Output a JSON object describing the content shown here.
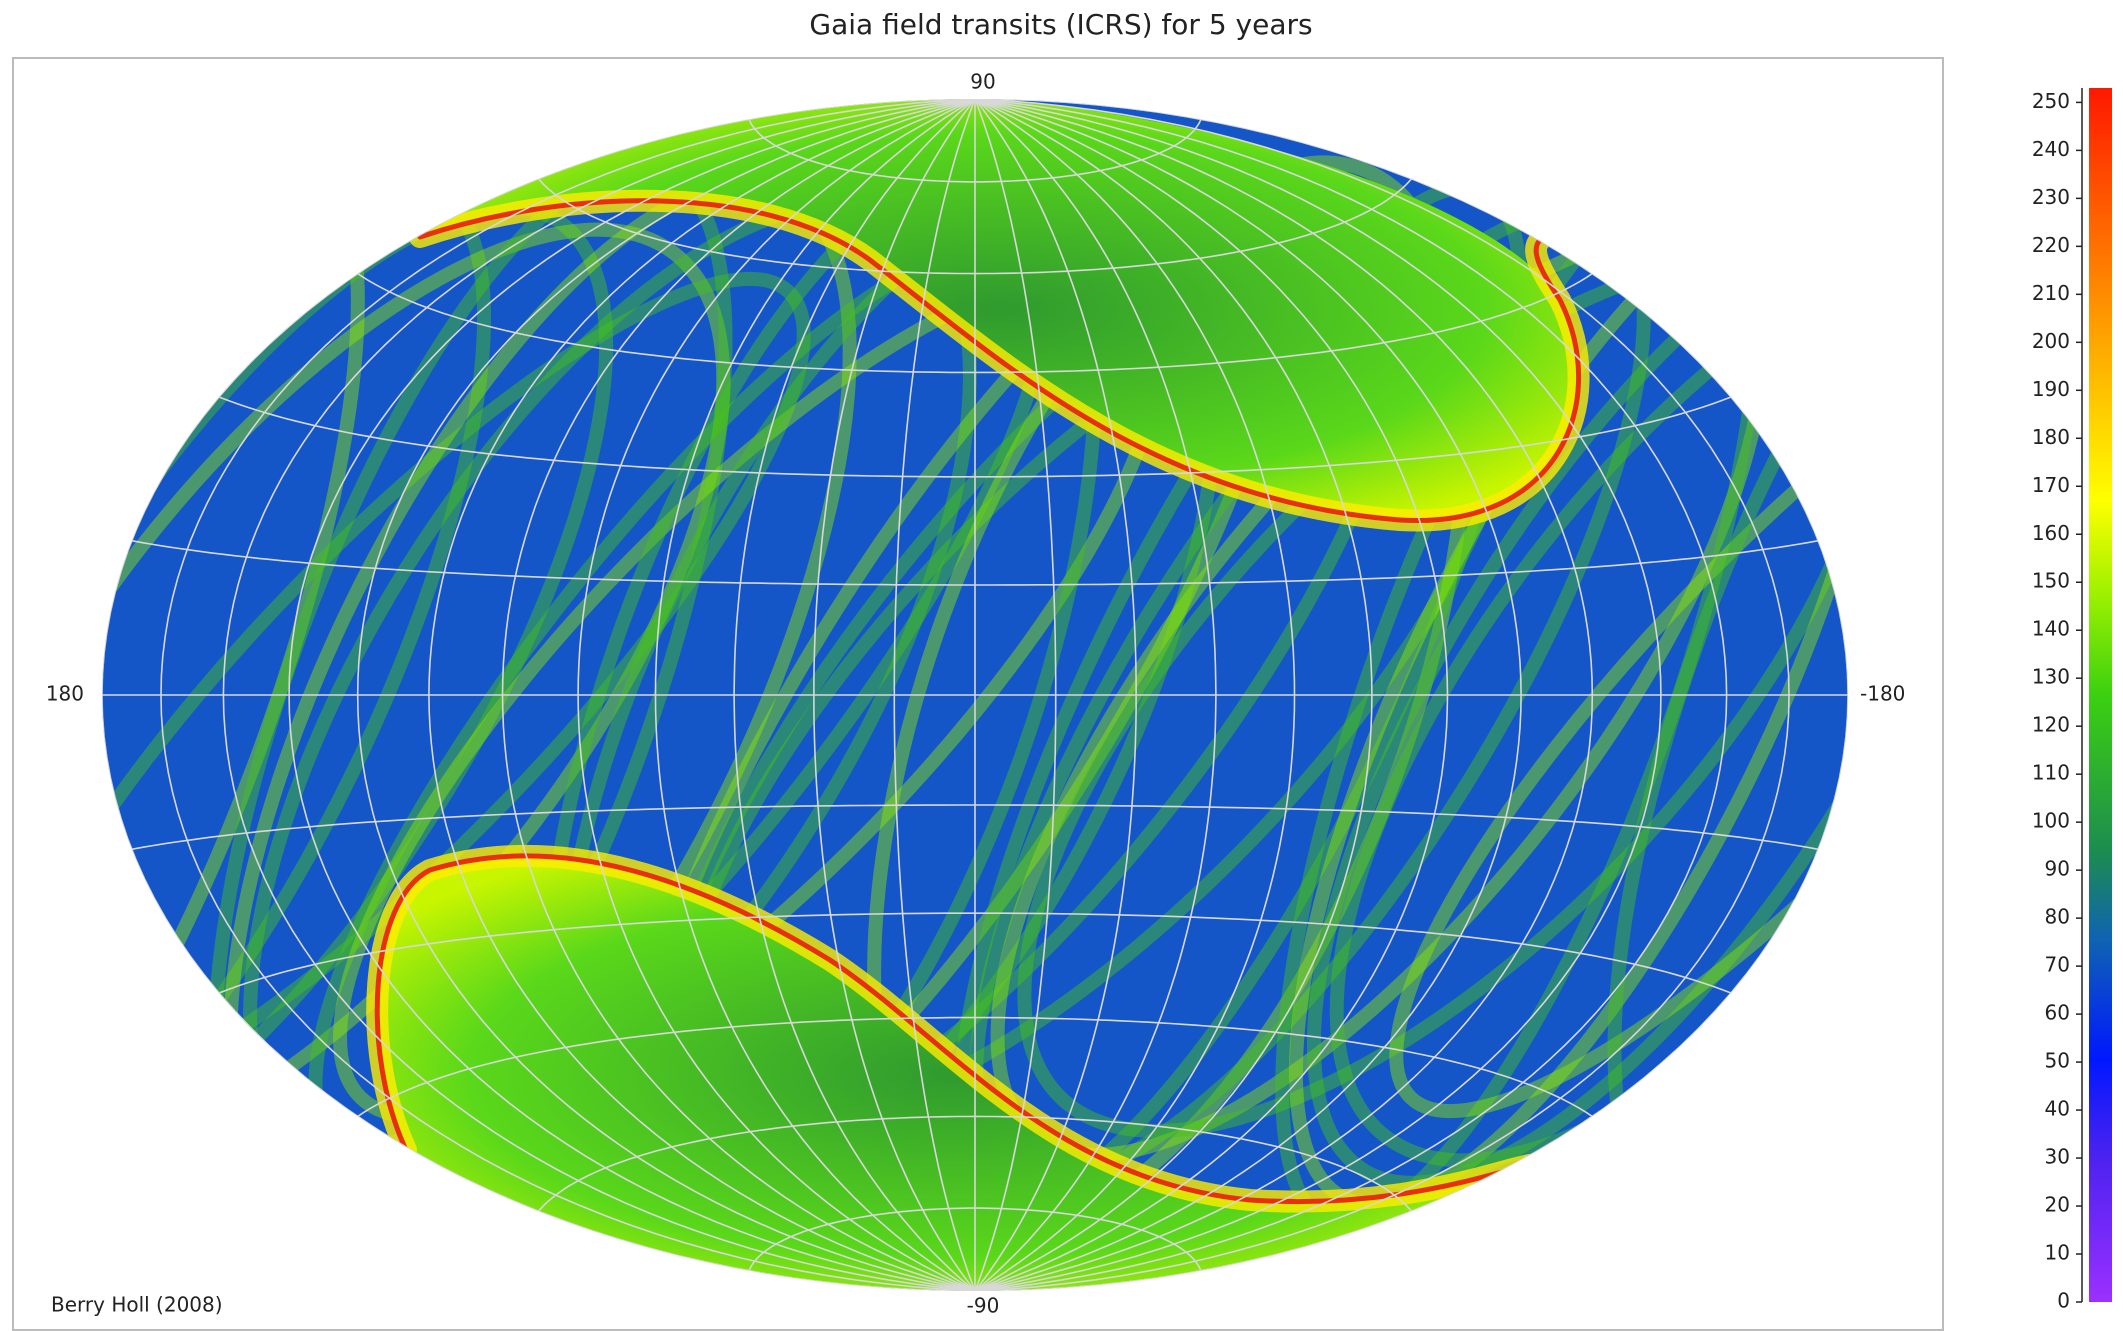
{
  "chart_data": {
    "type": "skymap",
    "title": "Gaia field transits (ICRS) for 5 years",
    "annotation": "Berry Holl (2008)",
    "xlim": [
      180,
      -180
    ],
    "xticks": [
      180,
      -180
    ],
    "ylim": [
      -90,
      90
    ],
    "yticks": [
      -90,
      90
    ],
    "grid": true,
    "zlim": [
      0,
      253
    ],
    "zticks": [
      0,
      10,
      20,
      30,
      40,
      50,
      60,
      70,
      80,
      90,
      100,
      110,
      120,
      130,
      140,
      150,
      160,
      170,
      180,
      190,
      200,
      210,
      220,
      230,
      240,
      250
    ]
  }
}
